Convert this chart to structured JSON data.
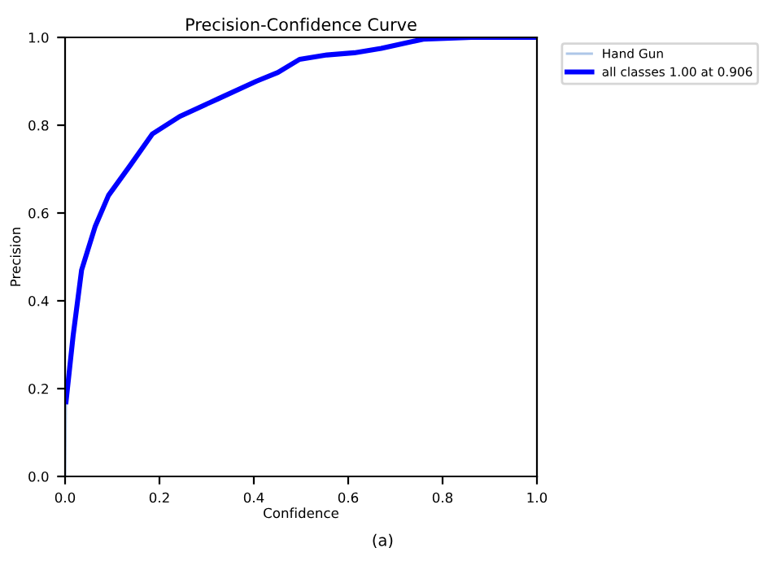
{
  "chart_data": {
    "type": "line",
    "title": "Precision-Confidence Curve",
    "xlabel": "Confidence",
    "ylabel": "Precision",
    "x": [
      0,
      0.002,
      0.017,
      0.035,
      0.064,
      0.092,
      0.139,
      0.185,
      0.243,
      0.324,
      0.405,
      0.451,
      0.497,
      0.555,
      0.613,
      0.67,
      0.759,
      0.862,
      1.0
    ],
    "series": [
      {
        "name": "Hand Gun",
        "color": "#aec7e8",
        "values": [
          0.0,
          0.17,
          null,
          null,
          null,
          null,
          null,
          null,
          null,
          null,
          null,
          null,
          null,
          null,
          null,
          null,
          null,
          null,
          null
        ]
      },
      {
        "name": "all classes 1.00 at 0.906",
        "color": "#0000ff",
        "values": [
          null,
          0.17,
          0.32,
          0.47,
          0.57,
          0.64,
          0.71,
          0.78,
          0.82,
          0.86,
          0.9,
          0.92,
          0.95,
          0.96,
          0.965,
          0.975,
          0.996,
          1.0,
          1.0
        ]
      }
    ],
    "xlim": [
      0,
      1
    ],
    "ylim": [
      0,
      1
    ],
    "xticks": [
      {
        "value": 0,
        "label": "0.0"
      },
      0.2,
      0.4,
      0.6,
      0.8,
      {
        "value": 1,
        "label": "1.0"
      }
    ],
    "yticks": [
      {
        "value": 0,
        "label": "0.0"
      },
      0.2,
      0.4,
      0.6,
      0.8,
      {
        "value": 1,
        "label": "1.0"
      }
    ],
    "legend": "top right",
    "grid": false,
    "marker": "none",
    "line_style": "solid",
    "annotations": [
      "(a)"
    ]
  }
}
